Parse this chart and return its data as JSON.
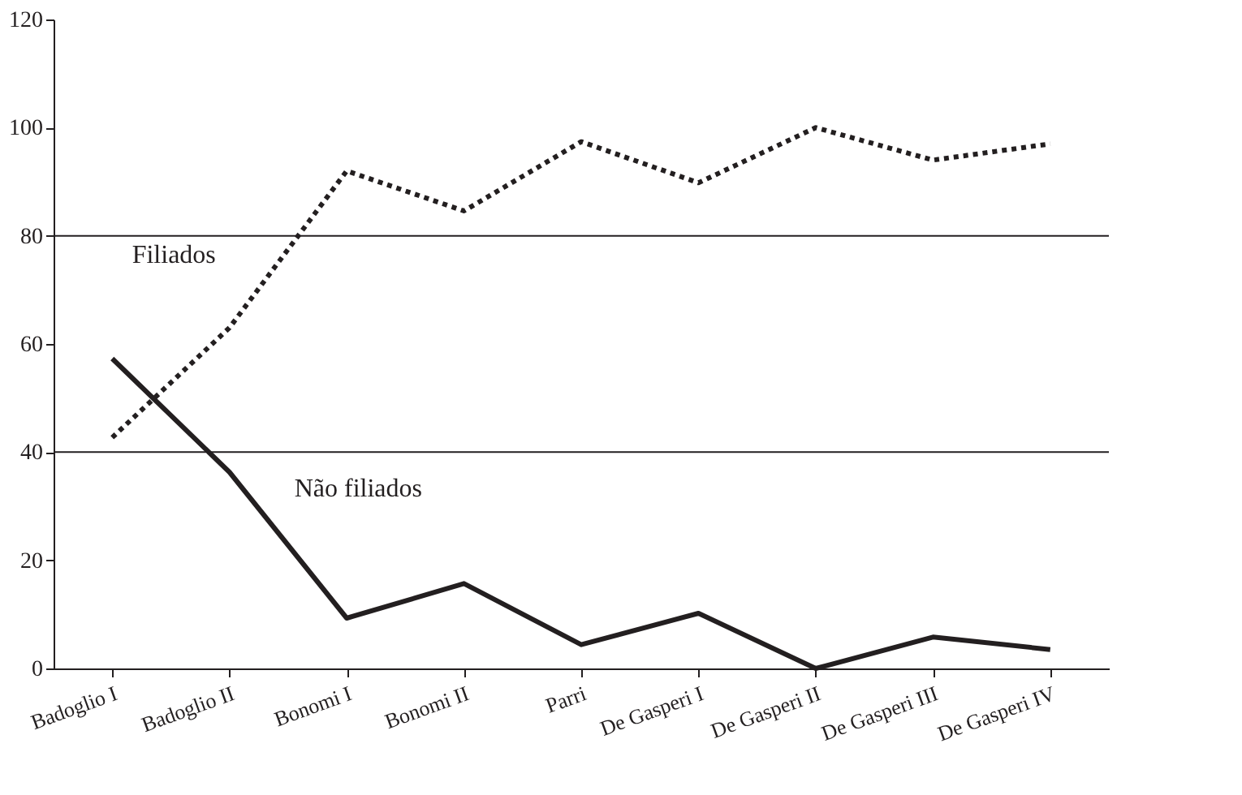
{
  "chart_data": {
    "type": "line",
    "categories": [
      "Badoglio I",
      "Badoglio II",
      "Bonomi I",
      "Bonomi II",
      "Parri",
      "De Gasperi I",
      "De Gasperi II",
      "De Gasperi III",
      "De Gasperi IV"
    ],
    "series": [
      {
        "name": "Filiados",
        "color": "#231f20",
        "line_style": "dotted",
        "values": [
          42.7,
          63,
          92,
          84.6,
          97.4,
          89.8,
          100,
          94,
          97
        ]
      },
      {
        "name": "Não filiados",
        "color": "#231f20",
        "line_style": "solid",
        "values": [
          57.3,
          36.3,
          9.3,
          15.7,
          4.4,
          10.2,
          0,
          5.8,
          3.5
        ]
      }
    ],
    "ylim": [
      0,
      120
    ],
    "yticks": [
      0,
      20,
      40,
      60,
      80,
      100,
      120
    ],
    "ref_lines": [
      {
        "axis": "y",
        "value": 40
      },
      {
        "axis": "y",
        "value": 80
      }
    ],
    "legend": false,
    "marker": "none"
  }
}
